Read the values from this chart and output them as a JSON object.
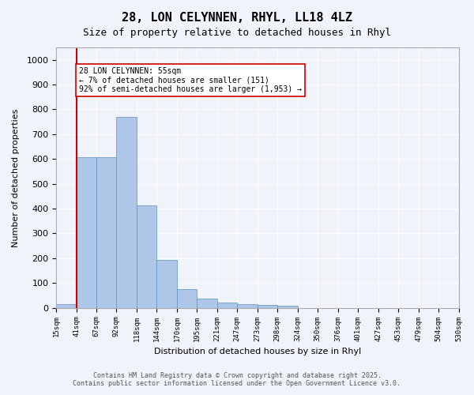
{
  "title": "28, LON CELYNNEN, RHYL, LL18 4LZ",
  "subtitle": "Size of property relative to detached houses in Rhyl",
  "xlabel": "Distribution of detached houses by size in Rhyl",
  "ylabel": "Number of detached properties",
  "bins": [
    "15sqm",
    "41sqm",
    "67sqm",
    "92sqm",
    "118sqm",
    "144sqm",
    "170sqm",
    "195sqm",
    "221sqm",
    "247sqm",
    "273sqm",
    "298sqm",
    "324sqm",
    "350sqm",
    "376sqm",
    "401sqm",
    "427sqm",
    "453sqm",
    "479sqm",
    "504sqm",
    "530sqm"
  ],
  "values": [
    15,
    607,
    607,
    770,
    413,
    193,
    76,
    38,
    20,
    15,
    12,
    8,
    0,
    0,
    0,
    0,
    0,
    0,
    0,
    0,
    0
  ],
  "bar_color": "#aec6e8",
  "bar_edge_color": "#5a8fc0",
  "vline_x": 1,
  "vline_color": "#cc0000",
  "annotation_text": "28 LON CELYNNEN: 55sqm\n← 7% of detached houses are smaller (151)\n92% of semi-detached houses are larger (1,953) →",
  "annotation_box_color": "#ffffff",
  "annotation_box_edge": "#cc0000",
  "ylim": [
    0,
    1050
  ],
  "yticks": [
    0,
    100,
    200,
    300,
    400,
    500,
    600,
    700,
    800,
    900,
    1000
  ],
  "footer_line1": "Contains HM Land Registry data © Crown copyright and database right 2025.",
  "footer_line2": "Contains public sector information licensed under the Open Government Licence v3.0.",
  "bg_color": "#f0f4fa",
  "grid_color": "#ffffff"
}
